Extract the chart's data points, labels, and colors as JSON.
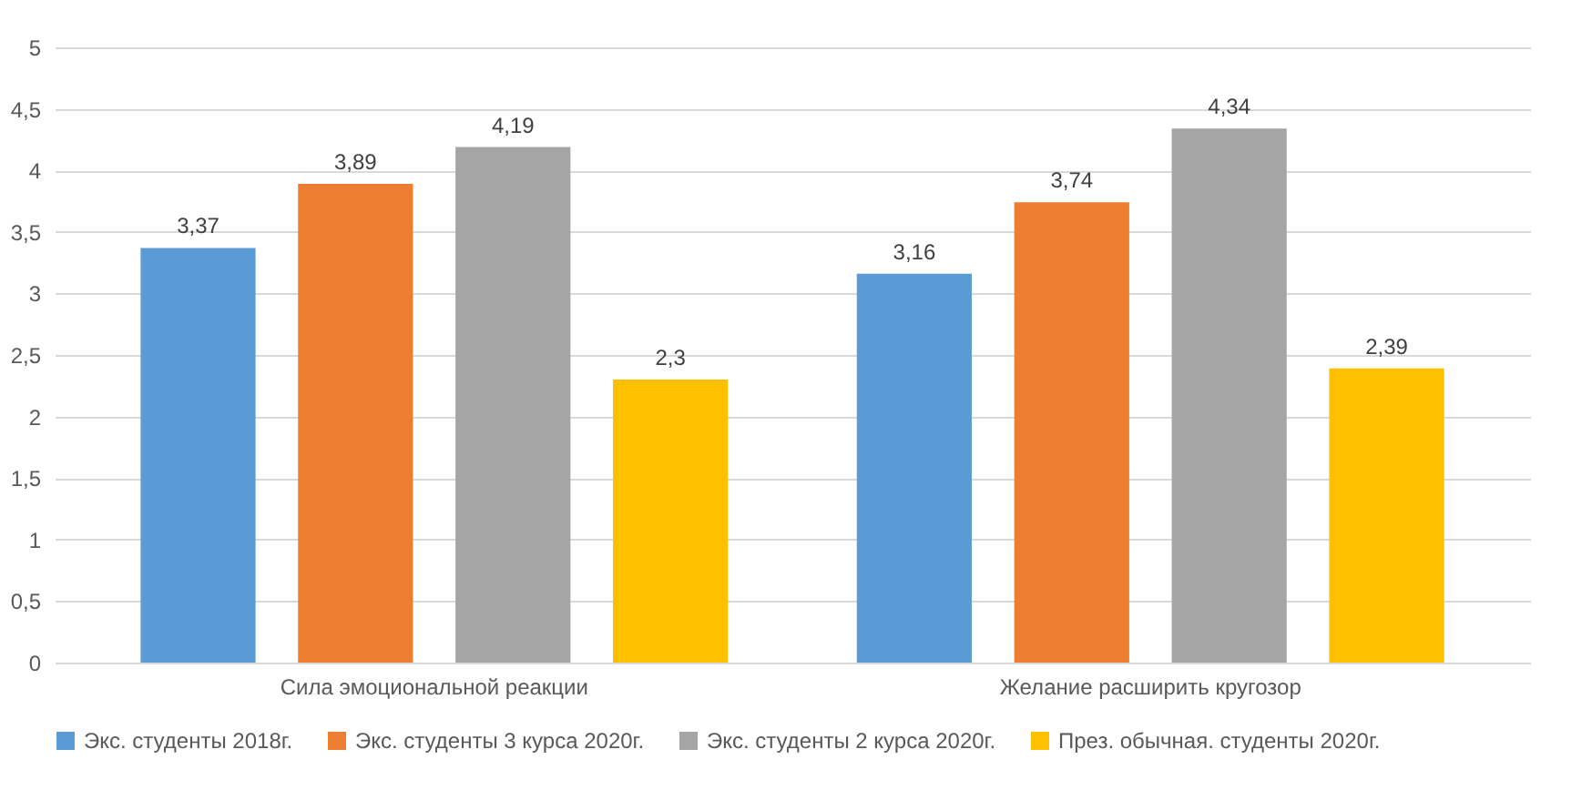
{
  "chart_data": {
    "type": "bar",
    "categories": [
      "Сила эмоциональной реакции",
      "Желание расширить кругозор"
    ],
    "series": [
      {
        "name": "Экс. студенты 2018г.",
        "color": "#5b9bd5",
        "values": [
          3.37,
          3.16
        ],
        "value_labels": [
          "3,37",
          "3,16"
        ]
      },
      {
        "name": "Экс. студенты 3 курса 2020г.",
        "color": "#ed7d31",
        "values": [
          3.89,
          3.74
        ],
        "value_labels": [
          "3,89",
          "3,74"
        ]
      },
      {
        "name": "Экс. студенты 2 курса 2020г.",
        "color": "#a5a5a5",
        "values": [
          4.19,
          4.34
        ],
        "value_labels": [
          "4,19",
          "4,34"
        ]
      },
      {
        "name": "През. обычная. студенты 2020г.",
        "color": "#ffc000",
        "values": [
          2.3,
          2.39
        ],
        "value_labels": [
          "2,3",
          "2,39"
        ]
      }
    ],
    "ylim": [
      0,
      5
    ],
    "yticks": [
      0,
      {
        "value": 0.5,
        "label": "0,5"
      },
      1,
      {
        "value": 1.5,
        "label": "1,5"
      },
      2,
      {
        "value": 2.5,
        "label": "2,5"
      },
      3,
      {
        "value": 3.5,
        "label": "3,5"
      },
      4,
      {
        "value": 4.5,
        "label": "4,5"
      },
      5
    ],
    "grid": "y",
    "legend": "bottom"
  }
}
